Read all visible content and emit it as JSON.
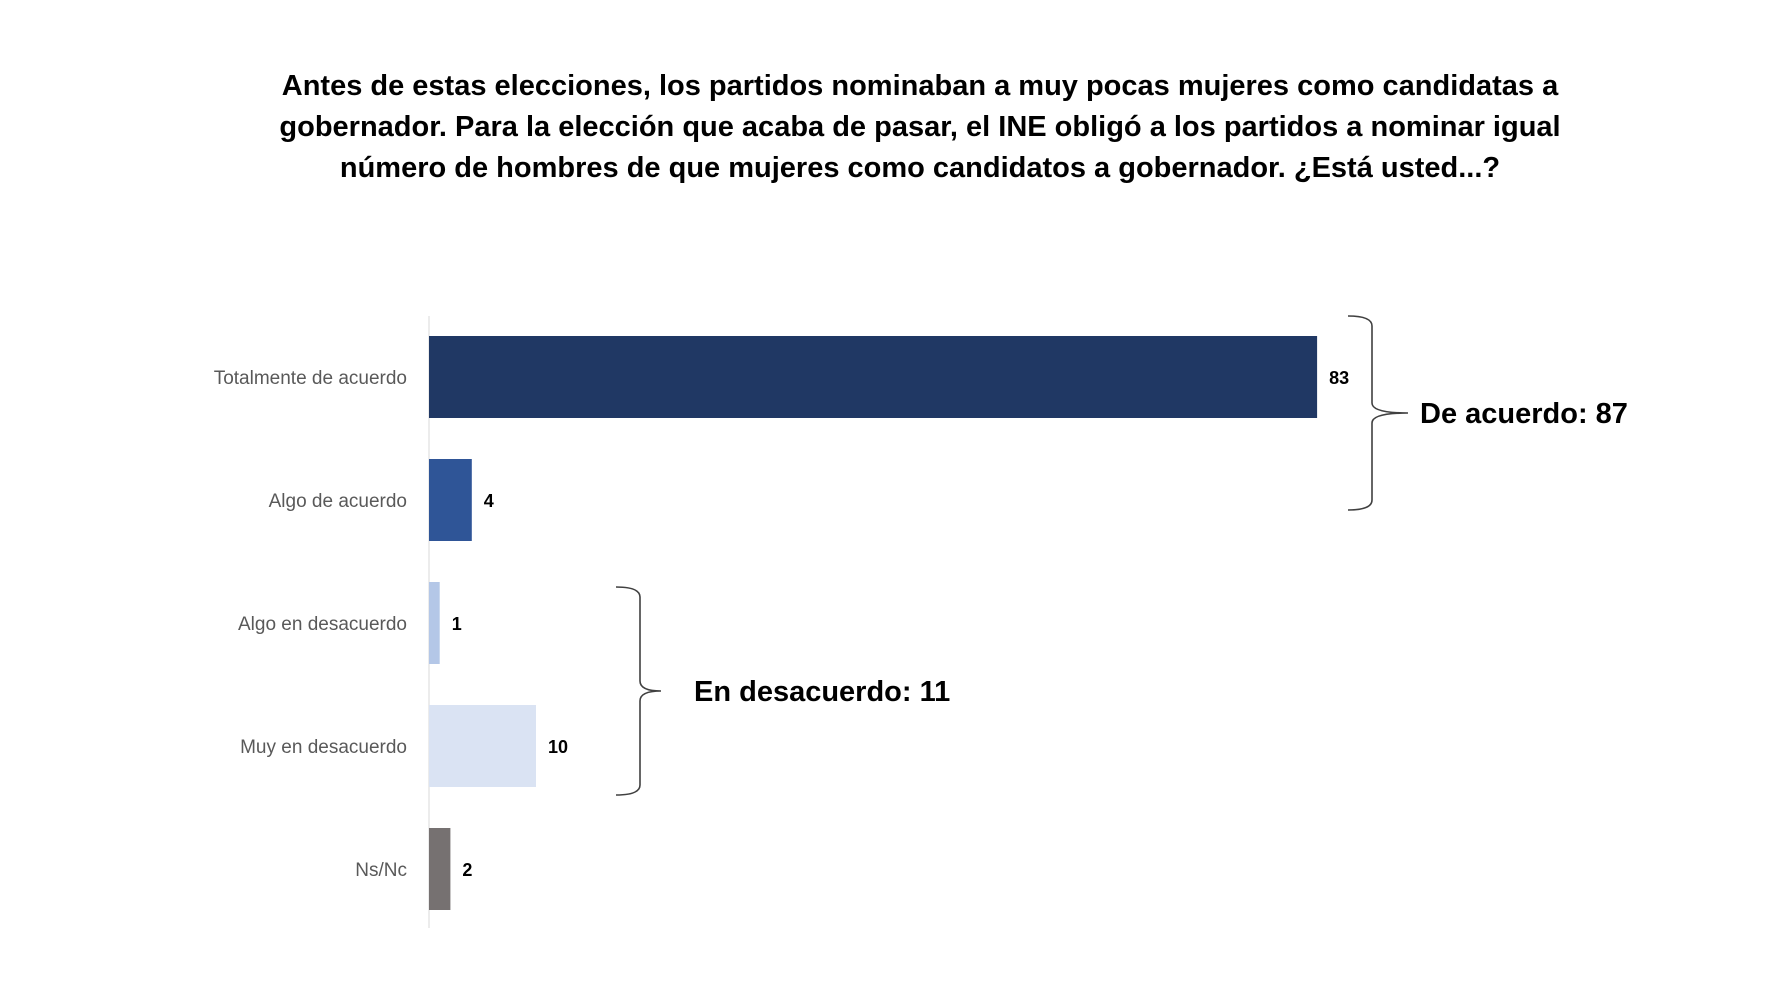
{
  "title_lines": [
    "Antes de estas elecciones, los partidos nominaban a muy pocas mujeres como candidatas a",
    "gobernador. Para la elección que acaba de pasar, el INE obligó a los partidos a nominar igual",
    "número de hombres de que mujeres como candidatos a gobernador. ¿Está usted...?"
  ],
  "chart_data": {
    "type": "bar",
    "orientation": "horizontal",
    "title": "Antes de estas elecciones, los partidos nominaban a muy pocas mujeres como candidatas a gobernador. Para la elección que acaba de pasar, el INE obligó a los partidos a nominar igual número de hombres de que mujeres como candidatos a gobernador. ¿Está usted...?",
    "categories": [
      "Totalmente de acuerdo",
      "Algo de acuerdo",
      "Algo en desacuerdo",
      "Muy en desacuerdo",
      "Ns/Nc"
    ],
    "values": [
      83,
      4,
      1,
      10,
      2
    ],
    "bar_colors": [
      "#203864",
      "#2f5597",
      "#b4c7e7",
      "#dae3f3",
      "#767171"
    ],
    "xlim": [
      0,
      100
    ],
    "grid": false,
    "groups": [
      {
        "label": "De acuerdo: 87",
        "categories": [
          "Totalmente de acuerdo",
          "Algo de acuerdo"
        ]
      },
      {
        "label": "En desacuerdo: 11",
        "categories": [
          "Algo en desacuerdo",
          "Muy en desacuerdo"
        ]
      }
    ]
  }
}
